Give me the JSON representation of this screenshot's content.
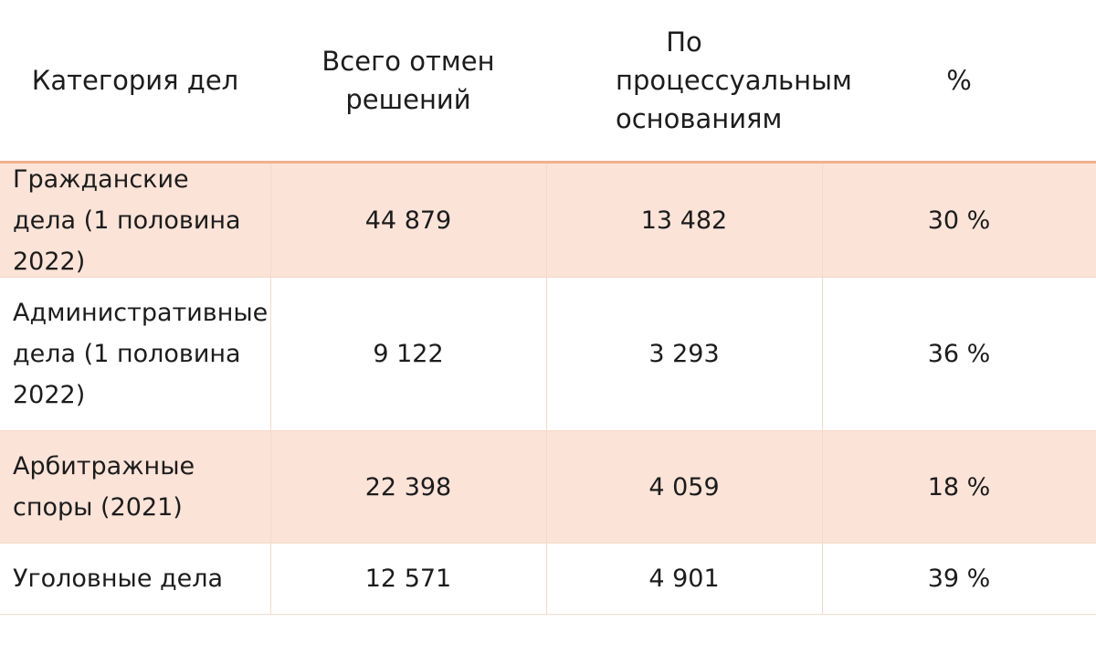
{
  "table": {
    "headers": [
      "Категория дел",
      "Всего отмен решений",
      "По процессуальным основаниям",
      "%"
    ],
    "rows": [
      {
        "category": "Гражданские дела (1 половина 2022)",
        "total": "44 879",
        "procedural": "13 482",
        "percent": "30 %"
      },
      {
        "category": "Административные дела (1 половина 2022)",
        "total": "9 122",
        "procedural": "3 293",
        "percent": "36 %"
      },
      {
        "category": "Арбитражные споры (2021)",
        "total": "22 398",
        "procedural": "4 059",
        "percent": "18 %"
      },
      {
        "category": "Уголовные дела",
        "total": "12 571",
        "procedural": "4 901",
        "percent": "39 %"
      }
    ]
  },
  "colors": {
    "shade": "#fbe3d8",
    "accent_line": "#f2b08c",
    "grid": "#f5d9c9"
  }
}
